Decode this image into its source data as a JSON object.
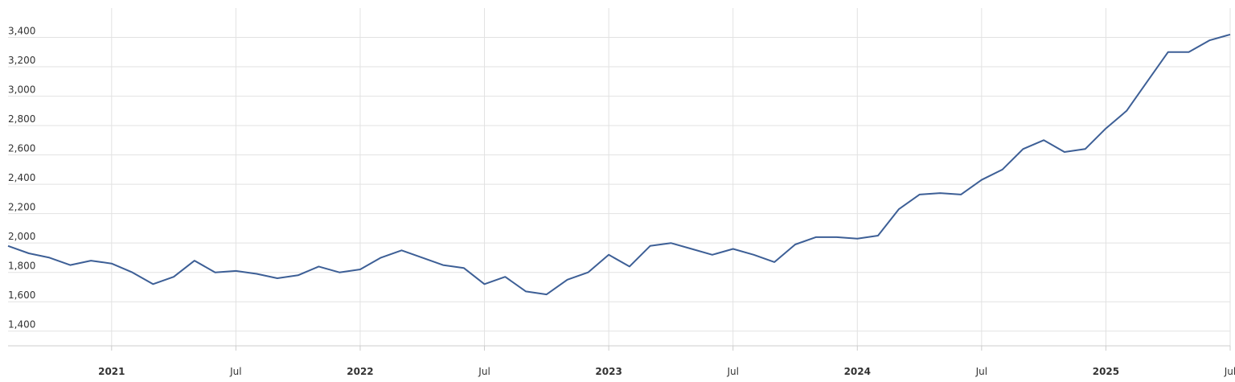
{
  "chart_data": {
    "type": "line",
    "color": "#3d5f96",
    "grid": true,
    "x": [
      "2020-08",
      "2020-09",
      "2020-10",
      "2020-11",
      "2020-12",
      "2021-01",
      "2021-02",
      "2021-03",
      "2021-04",
      "2021-05",
      "2021-06",
      "2021-07",
      "2021-08",
      "2021-09",
      "2021-10",
      "2021-11",
      "2021-12",
      "2022-01",
      "2022-02",
      "2022-03",
      "2022-04",
      "2022-05",
      "2022-06",
      "2022-07",
      "2022-08",
      "2022-09",
      "2022-10",
      "2022-11",
      "2022-12",
      "2023-01",
      "2023-02",
      "2023-03",
      "2023-04",
      "2023-05",
      "2023-06",
      "2023-07",
      "2023-08",
      "2023-09",
      "2023-10",
      "2023-11",
      "2023-12",
      "2024-01",
      "2024-02",
      "2024-03",
      "2024-04",
      "2024-05",
      "2024-06",
      "2024-07",
      "2024-08",
      "2024-09",
      "2024-10",
      "2024-11",
      "2024-12",
      "2025-01",
      "2025-02",
      "2025-03",
      "2025-04",
      "2025-05",
      "2025-06",
      "2025-07"
    ],
    "values": [
      1980,
      1930,
      1900,
      1850,
      1880,
      1860,
      1800,
      1720,
      1770,
      1880,
      1800,
      1810,
      1790,
      1760,
      1780,
      1840,
      1800,
      1820,
      1900,
      1950,
      1900,
      1850,
      1830,
      1720,
      1770,
      1670,
      1650,
      1750,
      1800,
      1920,
      1840,
      1980,
      2000,
      1960,
      1920,
      1960,
      1920,
      1870,
      1990,
      2040,
      2040,
      2030,
      2050,
      2230,
      2330,
      2340,
      2330,
      2430,
      2500,
      2640,
      2700,
      2620,
      2640,
      2780,
      2900,
      3100,
      3300,
      3300,
      3380,
      3420
    ],
    "xlim": [
      "2020-08",
      "2025-07"
    ],
    "xticks": [
      {
        "value": "2021-01",
        "label": "2021"
      },
      {
        "value": "2021-07",
        "label": "Jul"
      },
      {
        "value": "2022-01",
        "label": "2022"
      },
      {
        "value": "2022-07",
        "label": "Jul"
      },
      {
        "value": "2023-01",
        "label": "2023"
      },
      {
        "value": "2023-07",
        "label": "Jul"
      },
      {
        "value": "2024-01",
        "label": "2024"
      },
      {
        "value": "2024-07",
        "label": "Jul"
      },
      {
        "value": "2025-01",
        "label": "2025"
      },
      {
        "value": "2025-07",
        "label": "Jul"
      }
    ],
    "ylim": [
      1300,
      3600
    ],
    "yticks": [
      {
        "value": 1400,
        "label": "1,400"
      },
      {
        "value": 1600,
        "label": "1,600"
      },
      {
        "value": 1800,
        "label": "1,800"
      },
      {
        "value": 2000,
        "label": "2,000"
      },
      {
        "value": 2200,
        "label": "2,200"
      },
      {
        "value": 2400,
        "label": "2,400"
      },
      {
        "value": 2600,
        "label": "2,600"
      },
      {
        "value": 2800,
        "label": "2,800"
      },
      {
        "value": 3000,
        "label": "3,000"
      },
      {
        "value": 3200,
        "label": "3,200"
      },
      {
        "value": 3400,
        "label": "3,400"
      }
    ]
  }
}
